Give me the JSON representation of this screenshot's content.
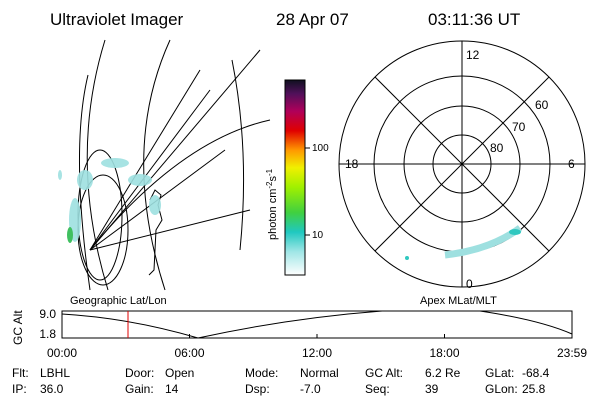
{
  "header": {
    "title": "Ultraviolet Imager",
    "date": "28 Apr 07",
    "time": "03:11:36 UT"
  },
  "colorbar": {
    "label": {
      "base": "photon cm",
      "exp1": "-2",
      "unit2": "s",
      "exp2": "-1"
    },
    "ticks": [
      "100",
      "10"
    ]
  },
  "left_panel": {
    "caption": "Geographic Lat/Lon"
  },
  "polar": {
    "caption": "Apex MLat/MLT",
    "mlt_labels": {
      "top": "12",
      "left": "18",
      "right": "6",
      "bottom": "0"
    },
    "lat_labels": [
      "60",
      "70",
      "80"
    ]
  },
  "timeline": {
    "y_label": "GC Alt",
    "y_ticks": [
      "9.0",
      "1.8"
    ],
    "x_ticks": [
      "00:00",
      "06:00",
      "12:00",
      "18:00",
      "23:59"
    ]
  },
  "footer": {
    "rows": [
      [
        {
          "label": "Flt:",
          "value": "LBHL"
        },
        {
          "label": "Door:",
          "value": "Open"
        },
        {
          "label": "Mode:",
          "value": "Normal"
        },
        {
          "label": "GC Alt:",
          "value": "6.2 Re"
        },
        {
          "label": "GLat:",
          "value": "-68.4"
        }
      ],
      [
        {
          "label": "IP:",
          "value": "36.0"
        },
        {
          "label": "Gain:",
          "value": "14"
        },
        {
          "label": "Dsp:",
          "value": "-7.0"
        },
        {
          "label": "Seq:",
          "value": "39"
        },
        {
          "label": "GLon:",
          "value": "25.8"
        }
      ]
    ]
  }
}
